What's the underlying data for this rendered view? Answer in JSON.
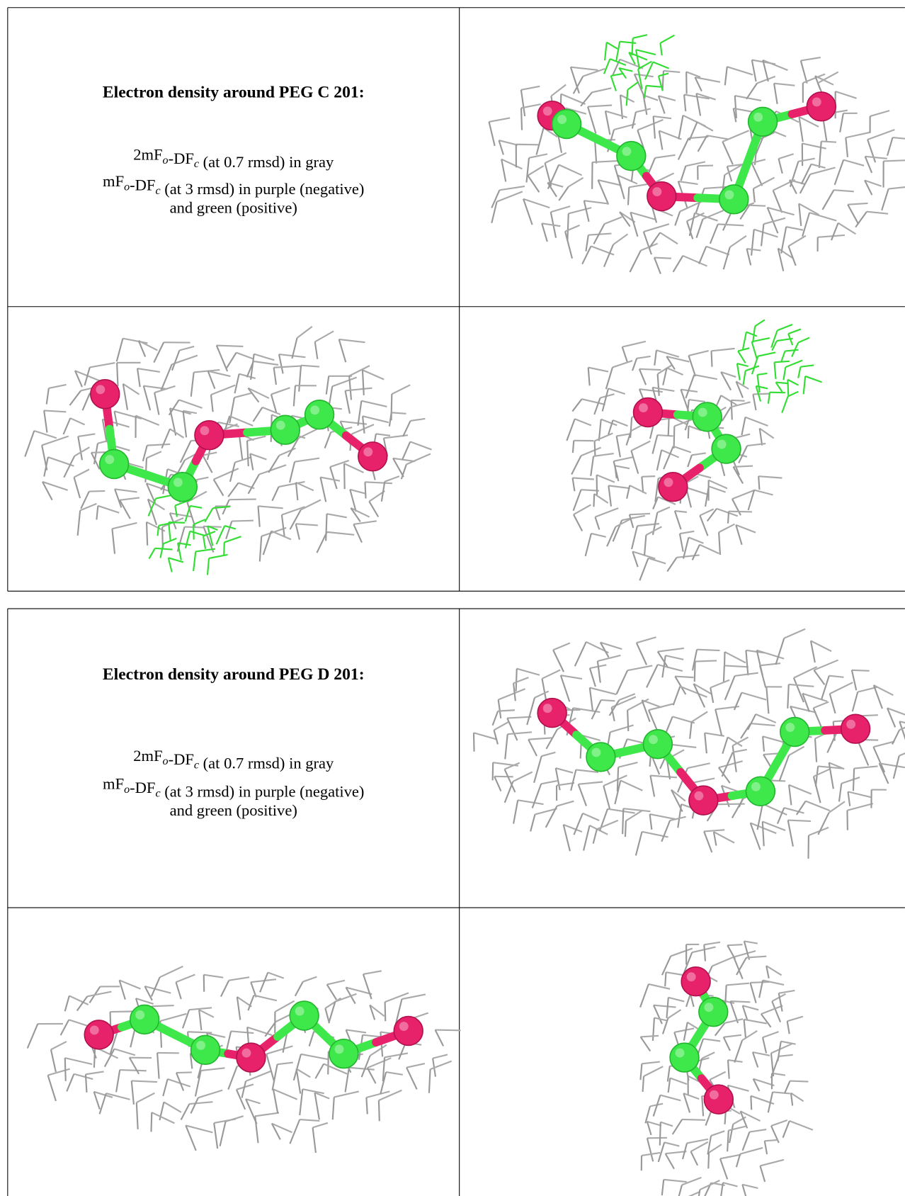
{
  "figures": [
    {
      "title": "Electron density around PEG C 201:",
      "caption": [
        [
          "2mF",
          {
            "sub": "o"
          },
          "-DF",
          {
            "sub": "c"
          },
          " (at 0.7 rmsd) in gray"
        ],
        [
          "mF",
          {
            "sub": "o"
          },
          "-DF",
          {
            "sub": "c"
          },
          " (at 3 rmsd) in purple (negative)"
        ],
        [
          "and green (positive)"
        ]
      ]
    },
    {
      "title": "Electron density around PEG D 201:",
      "caption": [
        [
          "2mF",
          {
            "sub": "o"
          },
          "-DF",
          {
            "sub": "c"
          },
          " (at 0.7 rmsd) in gray"
        ],
        [
          "mF",
          {
            "sub": "o"
          },
          "-DF",
          {
            "sub": "c"
          },
          " (at 3 rmsd) in purple (negative)"
        ],
        [
          "and green (positive)"
        ]
      ]
    }
  ]
}
